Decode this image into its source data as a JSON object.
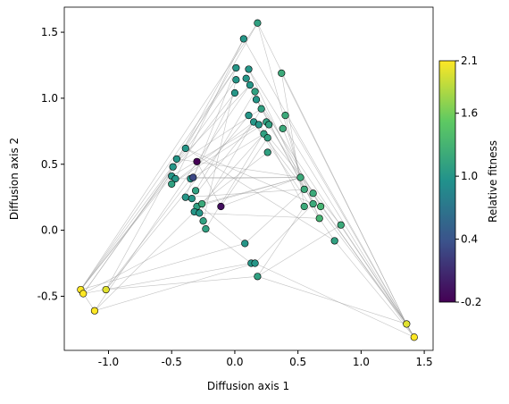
{
  "chart_data": {
    "type": "scatter",
    "xlabel": "Diffusion axis 1",
    "ylabel": "Diffusion axis 2",
    "colorbar_label": "Relative fitness",
    "colormap": "viridis",
    "x": [
      0.18,
      0.07,
      0.37,
      0.01,
      0.11,
      0.01,
      0.09,
      0.12,
      0.16,
      0.0,
      0.17,
      0.21,
      0.11,
      0.15,
      0.25,
      0.27,
      0.19,
      0.4,
      0.23,
      0.26,
      0.38,
      0.26,
      -0.39,
      -0.46,
      -0.49,
      -0.3,
      -0.5,
      -0.47,
      -0.5,
      -0.35,
      -0.33,
      -0.31,
      -0.39,
      -0.34,
      -0.3,
      -0.32,
      -0.28,
      -0.26,
      -0.25,
      -0.23,
      -0.11,
      0.52,
      0.55,
      0.62,
      0.55,
      0.62,
      0.68,
      0.67,
      0.84,
      0.79,
      0.08,
      0.13,
      0.16,
      0.18,
      -1.22,
      -1.2,
      -1.02,
      -1.11,
      1.36,
      1.42
    ],
    "y": [
      1.57,
      1.45,
      1.19,
      1.23,
      1.22,
      1.14,
      1.15,
      1.1,
      1.05,
      1.04,
      0.99,
      0.92,
      0.87,
      0.82,
      0.82,
      0.8,
      0.8,
      0.87,
      0.73,
      0.7,
      0.77,
      0.59,
      0.62,
      0.54,
      0.48,
      0.52,
      0.41,
      0.39,
      0.35,
      0.39,
      0.4,
      0.3,
      0.25,
      0.24,
      0.18,
      0.14,
      0.13,
      0.2,
      0.07,
      0.01,
      0.18,
      0.4,
      0.31,
      0.28,
      0.18,
      0.2,
      0.18,
      0.09,
      0.04,
      -0.08,
      -0.1,
      -0.25,
      -0.25,
      -0.35,
      -0.45,
      -0.48,
      -0.45,
      -0.61,
      -0.71,
      -0.81
    ],
    "fitness": [
      1.1,
      1.0,
      1.2,
      1.0,
      1.0,
      1.0,
      1.0,
      1.0,
      1.1,
      1.0,
      1.0,
      1.1,
      1.0,
      1.0,
      1.1,
      1.1,
      1.0,
      1.2,
      1.1,
      1.1,
      1.2,
      1.1,
      1.0,
      1.0,
      1.0,
      -0.2,
      1.0,
      1.0,
      1.1,
      1.0,
      0.3,
      1.1,
      1.0,
      1.0,
      1.1,
      1.0,
      1.0,
      1.2,
      1.1,
      1.1,
      -0.1,
      1.2,
      1.2,
      1.2,
      1.2,
      1.2,
      1.3,
      1.3,
      1.2,
      1.1,
      1.0,
      1.0,
      1.0,
      1.1,
      2.1,
      2.1,
      2.0,
      2.1,
      2.0,
      2.1
    ],
    "edges": [
      [
        54,
        0
      ],
      [
        54,
        3
      ],
      [
        54,
        9
      ],
      [
        54,
        22
      ],
      [
        54,
        26
      ],
      [
        54,
        50
      ],
      [
        55,
        5
      ],
      [
        55,
        24
      ],
      [
        55,
        39
      ],
      [
        55,
        51
      ],
      [
        56,
        1
      ],
      [
        56,
        12
      ],
      [
        56,
        29
      ],
      [
        56,
        53
      ],
      [
        57,
        7
      ],
      [
        57,
        35
      ],
      [
        57,
        52
      ],
      [
        57,
        54
      ],
      [
        58,
        0
      ],
      [
        58,
        2
      ],
      [
        58,
        10
      ],
      [
        58,
        13
      ],
      [
        58,
        41
      ],
      [
        58,
        48
      ],
      [
        58,
        53
      ],
      [
        59,
        1
      ],
      [
        59,
        4
      ],
      [
        59,
        17
      ],
      [
        59,
        43
      ],
      [
        59,
        49
      ],
      [
        59,
        52
      ],
      [
        58,
        59
      ],
      [
        0,
        22
      ],
      [
        0,
        41
      ],
      [
        1,
        27
      ],
      [
        2,
        44
      ],
      [
        3,
        32
      ],
      [
        4,
        47
      ],
      [
        5,
        38
      ],
      [
        6,
        42
      ],
      [
        7,
        24
      ],
      [
        8,
        46
      ],
      [
        9,
        30
      ],
      [
        10,
        45
      ],
      [
        11,
        36
      ],
      [
        12,
        49
      ],
      [
        13,
        33
      ],
      [
        14,
        43
      ],
      [
        15,
        39
      ],
      [
        16,
        48
      ],
      [
        17,
        41
      ],
      [
        18,
        35
      ],
      [
        19,
        44
      ],
      [
        20,
        47
      ],
      [
        21,
        34
      ],
      [
        22,
        45
      ],
      [
        23,
        3
      ],
      [
        24,
        11
      ],
      [
        25,
        40
      ],
      [
        26,
        16
      ],
      [
        27,
        41
      ],
      [
        28,
        13
      ],
      [
        29,
        18
      ],
      [
        30,
        41
      ],
      [
        31,
        8
      ],
      [
        32,
        42
      ],
      [
        33,
        50
      ],
      [
        34,
        41
      ],
      [
        36,
        47
      ],
      [
        37,
        41
      ],
      [
        39,
        51
      ],
      [
        40,
        41
      ],
      [
        42,
        50
      ],
      [
        44,
        53
      ],
      [
        45,
        52
      ],
      [
        48,
        53
      ],
      [
        22,
        49
      ],
      [
        23,
        41
      ],
      [
        19,
        40
      ],
      [
        14,
        28
      ]
    ],
    "xlim": [
      -1.35,
      1.57
    ],
    "ylim": [
      -0.91,
      1.69
    ],
    "xticks": [
      {
        "value": -1,
        "label": "-1.0"
      },
      -0.5,
      {
        "value": 0,
        "label": "0.0"
      },
      0.5,
      {
        "value": 1,
        "label": "1.0"
      },
      1.5
    ],
    "yticks": [
      -0.5,
      {
        "value": 0,
        "label": "0.0"
      },
      0.5,
      {
        "value": 1,
        "label": "1.0"
      },
      1.5
    ],
    "clim": [
      -0.2,
      2.1
    ],
    "cticks": [
      -0.2,
      0.4,
      {
        "value": 1,
        "label": "1.0"
      },
      1.6,
      2.1
    ]
  }
}
